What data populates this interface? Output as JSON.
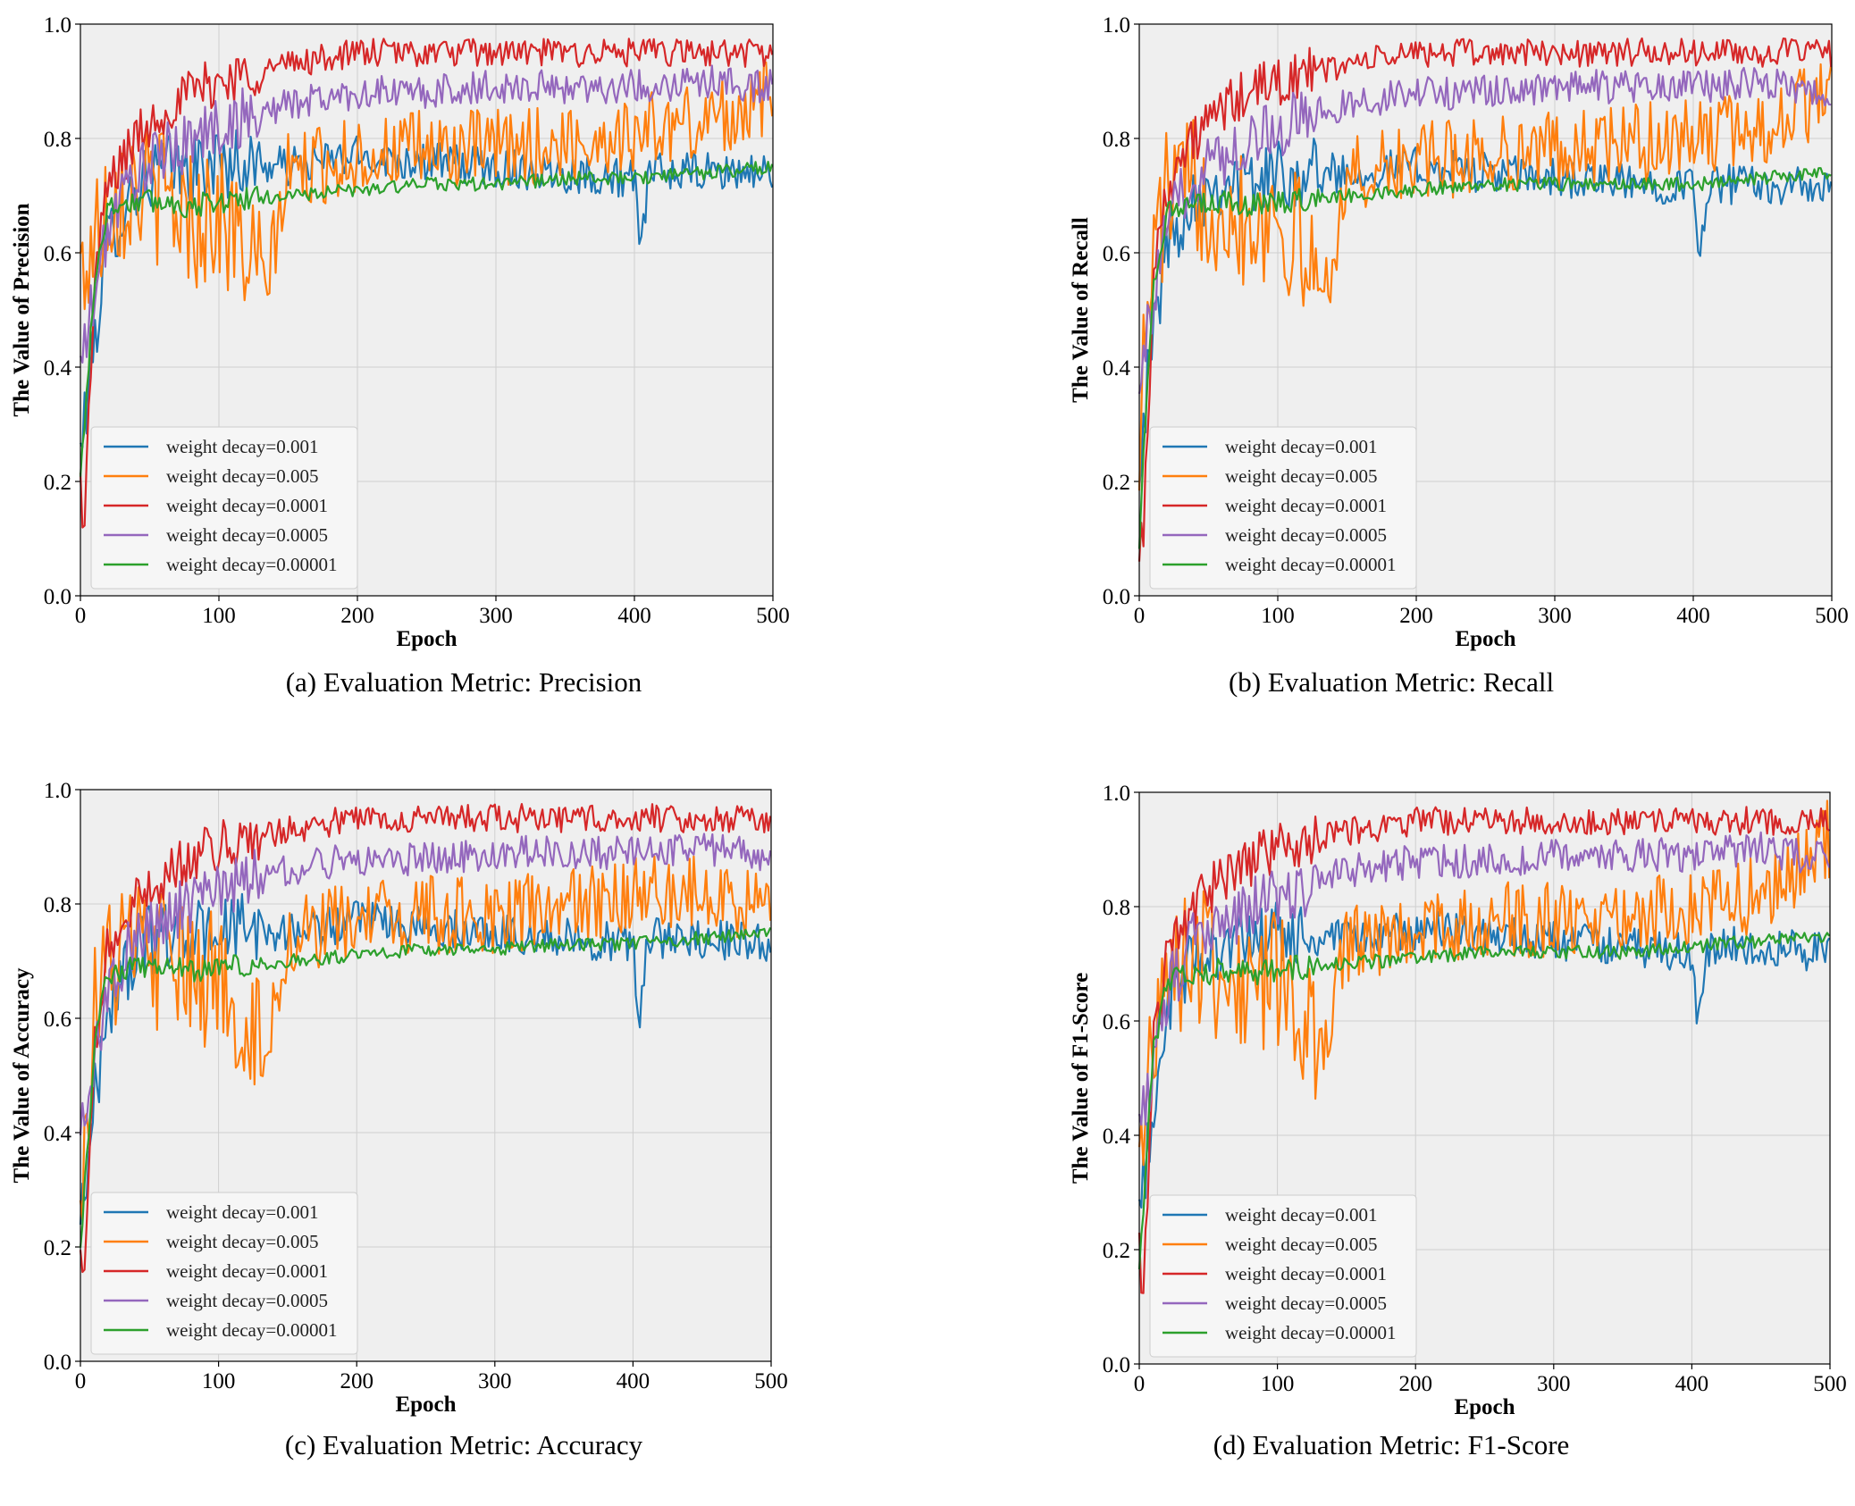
{
  "colors": {
    "plot_background": "#efefef",
    "grid": "#cfcfcf",
    "series": [
      "#1f77b4",
      "#ff7f0e",
      "#d62728",
      "#9467bd",
      "#2ca02c"
    ]
  },
  "chart_data": [
    {
      "type": "line",
      "caption": "(a) Evaluation Metric: Precision",
      "xlabel": "Epoch",
      "ylabel": "The Value of Precision",
      "xlim": [
        0,
        500
      ],
      "ylim": [
        0.0,
        1.0
      ],
      "xticks": [
        "0",
        "100",
        "200",
        "300",
        "400",
        "500"
      ],
      "yticks": [
        "0.0",
        "0.2",
        "0.4",
        "0.6",
        "0.8",
        "1.0"
      ],
      "legend_position": "lower-left",
      "series": [
        {
          "name": "weight decay=0.001",
          "x": [
            0,
            10,
            20,
            40,
            60,
            80,
            100,
            150,
            200,
            250,
            300,
            350,
            400,
            404,
            410,
            450,
            500
          ],
          "values": [
            0.25,
            0.45,
            0.62,
            0.72,
            0.75,
            0.74,
            0.76,
            0.75,
            0.77,
            0.76,
            0.75,
            0.74,
            0.73,
            0.58,
            0.74,
            0.74,
            0.74
          ]
        },
        {
          "name": "weight decay=0.005",
          "x": [
            0,
            10,
            20,
            40,
            60,
            80,
            100,
            134,
            150,
            200,
            250,
            300,
            350,
            400,
            450,
            500
          ],
          "values": [
            0.56,
            0.62,
            0.7,
            0.72,
            0.7,
            0.66,
            0.67,
            0.54,
            0.74,
            0.77,
            0.78,
            0.78,
            0.79,
            0.81,
            0.83,
            0.87
          ]
        },
        {
          "name": "weight decay=0.0001",
          "x": [
            0,
            3,
            10,
            20,
            40,
            60,
            80,
            100,
            150,
            200,
            250,
            300,
            350,
            400,
            450,
            500
          ],
          "values": [
            0.2,
            0.12,
            0.55,
            0.72,
            0.8,
            0.85,
            0.88,
            0.9,
            0.93,
            0.95,
            0.95,
            0.95,
            0.95,
            0.95,
            0.95,
            0.95
          ]
        },
        {
          "name": "weight decay=0.0005",
          "x": [
            0,
            10,
            20,
            40,
            60,
            80,
            100,
            150,
            200,
            250,
            300,
            350,
            400,
            450,
            500
          ],
          "values": [
            0.4,
            0.52,
            0.65,
            0.74,
            0.77,
            0.8,
            0.82,
            0.86,
            0.88,
            0.88,
            0.89,
            0.89,
            0.89,
            0.9,
            0.89
          ]
        },
        {
          "name": "weight decay=0.00001",
          "x": [
            0,
            10,
            20,
            40,
            60,
            80,
            100,
            150,
            200,
            250,
            300,
            350,
            400,
            450,
            500
          ],
          "values": [
            0.2,
            0.55,
            0.68,
            0.69,
            0.69,
            0.68,
            0.69,
            0.7,
            0.71,
            0.72,
            0.72,
            0.73,
            0.73,
            0.74,
            0.75
          ]
        }
      ]
    },
    {
      "type": "line",
      "caption": "(b) Evaluation Metric: Recall",
      "xlabel": "Epoch",
      "ylabel": "The Value of Recall",
      "xlim": [
        0,
        500
      ],
      "ylim": [
        0.0,
        1.0
      ],
      "xticks": [
        "0",
        "100",
        "200",
        "300",
        "400",
        "500"
      ],
      "yticks": [
        "0.0",
        "0.2",
        "0.4",
        "0.6",
        "0.8",
        "1.0"
      ],
      "legend_position": "lower-left",
      "series": [
        {
          "name": "weight decay=0.001",
          "x": [
            0,
            10,
            20,
            40,
            60,
            80,
            100,
            150,
            200,
            250,
            300,
            350,
            400,
            404,
            410,
            450,
            500
          ],
          "values": [
            0.25,
            0.45,
            0.62,
            0.7,
            0.73,
            0.72,
            0.74,
            0.74,
            0.75,
            0.74,
            0.73,
            0.72,
            0.72,
            0.57,
            0.72,
            0.72,
            0.71
          ]
        },
        {
          "name": "weight decay=0.005",
          "x": [
            0,
            10,
            20,
            40,
            60,
            80,
            100,
            134,
            150,
            200,
            250,
            300,
            350,
            400,
            450,
            500
          ],
          "values": [
            0.3,
            0.6,
            0.7,
            0.71,
            0.69,
            0.66,
            0.67,
            0.53,
            0.73,
            0.76,
            0.77,
            0.78,
            0.79,
            0.8,
            0.82,
            0.88
          ]
        },
        {
          "name": "weight decay=0.0001",
          "x": [
            0,
            3,
            10,
            20,
            40,
            60,
            80,
            100,
            150,
            200,
            250,
            300,
            350,
            400,
            450,
            500
          ],
          "values": [
            0.1,
            0.11,
            0.55,
            0.72,
            0.8,
            0.85,
            0.88,
            0.9,
            0.93,
            0.95,
            0.95,
            0.95,
            0.95,
            0.95,
            0.95,
            0.95
          ]
        },
        {
          "name": "weight decay=0.0005",
          "x": [
            0,
            10,
            20,
            40,
            60,
            80,
            100,
            150,
            200,
            250,
            300,
            350,
            400,
            450,
            500
          ],
          "values": [
            0.4,
            0.5,
            0.65,
            0.74,
            0.77,
            0.8,
            0.82,
            0.86,
            0.88,
            0.88,
            0.89,
            0.89,
            0.89,
            0.9,
            0.88
          ]
        },
        {
          "name": "weight decay=0.00001",
          "x": [
            0,
            10,
            20,
            40,
            60,
            80,
            100,
            150,
            200,
            250,
            300,
            350,
            400,
            450,
            500
          ],
          "values": [
            0.1,
            0.55,
            0.67,
            0.68,
            0.69,
            0.68,
            0.69,
            0.7,
            0.71,
            0.72,
            0.72,
            0.72,
            0.72,
            0.73,
            0.74
          ]
        }
      ]
    },
    {
      "type": "line",
      "caption": "(c) Evaluation Metric: Accuracy",
      "xlabel": "Epoch",
      "ylabel": "The Value of Accuracy",
      "xlim": [
        0,
        500
      ],
      "ylim": [
        0.0,
        1.0
      ],
      "xticks": [
        "0",
        "100",
        "200",
        "300",
        "400",
        "500"
      ],
      "yticks": [
        "0.0",
        "0.2",
        "0.4",
        "0.6",
        "0.8",
        "1.0"
      ],
      "legend_position": "lower-left",
      "series": [
        {
          "name": "weight decay=0.001",
          "x": [
            0,
            10,
            20,
            40,
            60,
            80,
            100,
            150,
            200,
            250,
            300,
            350,
            400,
            404,
            410,
            450,
            500
          ],
          "values": [
            0.25,
            0.45,
            0.62,
            0.72,
            0.75,
            0.74,
            0.76,
            0.75,
            0.77,
            0.76,
            0.75,
            0.74,
            0.73,
            0.58,
            0.74,
            0.74,
            0.73
          ]
        },
        {
          "name": "weight decay=0.005",
          "x": [
            0,
            10,
            20,
            40,
            60,
            80,
            100,
            134,
            150,
            200,
            250,
            300,
            350,
            400,
            450,
            500
          ],
          "values": [
            0.3,
            0.62,
            0.7,
            0.72,
            0.7,
            0.66,
            0.67,
            0.54,
            0.74,
            0.77,
            0.78,
            0.78,
            0.79,
            0.81,
            0.83,
            0.78
          ]
        },
        {
          "name": "weight decay=0.0001",
          "x": [
            0,
            3,
            10,
            20,
            40,
            60,
            80,
            100,
            150,
            200,
            250,
            300,
            350,
            400,
            450,
            500
          ],
          "values": [
            0.2,
            0.12,
            0.55,
            0.72,
            0.8,
            0.85,
            0.88,
            0.9,
            0.93,
            0.95,
            0.95,
            0.95,
            0.95,
            0.95,
            0.95,
            0.95
          ]
        },
        {
          "name": "weight decay=0.0005",
          "x": [
            0,
            10,
            20,
            40,
            60,
            80,
            100,
            150,
            200,
            250,
            300,
            350,
            400,
            450,
            500
          ],
          "values": [
            0.4,
            0.52,
            0.65,
            0.74,
            0.77,
            0.8,
            0.82,
            0.86,
            0.88,
            0.88,
            0.89,
            0.89,
            0.89,
            0.9,
            0.88
          ]
        },
        {
          "name": "weight decay=0.00001",
          "x": [
            0,
            10,
            20,
            40,
            60,
            80,
            100,
            150,
            200,
            250,
            300,
            350,
            400,
            450,
            500
          ],
          "values": [
            0.2,
            0.55,
            0.68,
            0.69,
            0.69,
            0.68,
            0.69,
            0.7,
            0.71,
            0.72,
            0.72,
            0.73,
            0.73,
            0.74,
            0.75
          ]
        }
      ]
    },
    {
      "type": "line",
      "caption": "(d) Evaluation Metric: F1-Score",
      "xlabel": "Epoch",
      "ylabel": "The Value of F1-Score",
      "xlim": [
        0,
        500
      ],
      "ylim": [
        0.0,
        1.0
      ],
      "xticks": [
        "0",
        "100",
        "200",
        "300",
        "400",
        "500"
      ],
      "yticks": [
        "0.0",
        "0.2",
        "0.4",
        "0.6",
        "0.8",
        "1.0"
      ],
      "legend_position": "lower-left",
      "series": [
        {
          "name": "weight decay=0.001",
          "x": [
            0,
            10,
            20,
            40,
            60,
            80,
            100,
            150,
            200,
            250,
            300,
            350,
            400,
            404,
            410,
            450,
            500
          ],
          "values": [
            0.25,
            0.45,
            0.62,
            0.71,
            0.74,
            0.73,
            0.75,
            0.74,
            0.76,
            0.75,
            0.74,
            0.73,
            0.72,
            0.57,
            0.73,
            0.73,
            0.72
          ]
        },
        {
          "name": "weight decay=0.005",
          "x": [
            0,
            10,
            20,
            40,
            60,
            80,
            100,
            134,
            150,
            200,
            250,
            300,
            350,
            400,
            450,
            500
          ],
          "values": [
            0.3,
            0.61,
            0.7,
            0.71,
            0.69,
            0.66,
            0.67,
            0.53,
            0.73,
            0.76,
            0.77,
            0.78,
            0.79,
            0.8,
            0.82,
            0.92
          ]
        },
        {
          "name": "weight decay=0.0001",
          "x": [
            0,
            3,
            10,
            20,
            40,
            60,
            80,
            100,
            150,
            200,
            250,
            300,
            350,
            400,
            450,
            500
          ],
          "values": [
            0.2,
            0.11,
            0.55,
            0.72,
            0.8,
            0.85,
            0.88,
            0.9,
            0.93,
            0.95,
            0.95,
            0.95,
            0.95,
            0.95,
            0.95,
            0.95
          ]
        },
        {
          "name": "weight decay=0.0005",
          "x": [
            0,
            10,
            20,
            40,
            60,
            80,
            100,
            150,
            200,
            250,
            300,
            350,
            400,
            450,
            500
          ],
          "values": [
            0.4,
            0.51,
            0.65,
            0.74,
            0.77,
            0.8,
            0.82,
            0.86,
            0.88,
            0.88,
            0.89,
            0.89,
            0.89,
            0.9,
            0.88
          ]
        },
        {
          "name": "weight decay=0.00001",
          "x": [
            0,
            10,
            20,
            40,
            60,
            80,
            100,
            150,
            200,
            250,
            300,
            350,
            400,
            450,
            500
          ],
          "values": [
            0.15,
            0.55,
            0.67,
            0.68,
            0.69,
            0.68,
            0.69,
            0.7,
            0.71,
            0.72,
            0.72,
            0.72,
            0.73,
            0.74,
            0.75
          ]
        }
      ]
    }
  ]
}
